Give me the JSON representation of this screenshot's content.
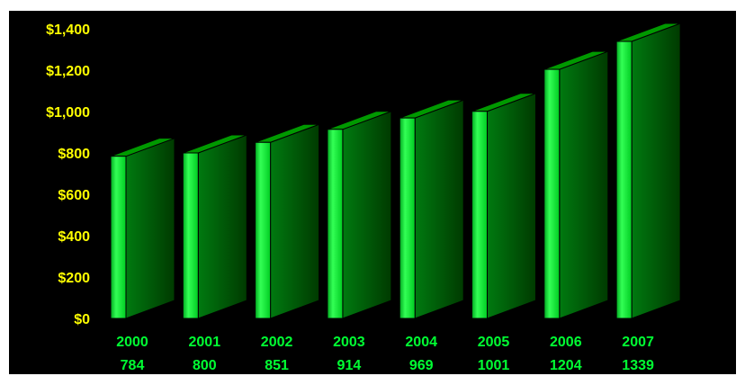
{
  "chart_data": {
    "type": "bar",
    "title": "",
    "xlabel": "",
    "ylabel": "",
    "categories": [
      "2000",
      "2001",
      "2002",
      "2003",
      "2004",
      "2005",
      "2006",
      "2007"
    ],
    "value_labels": [
      "784",
      "800",
      "851",
      "914",
      "969",
      "1001",
      "1204",
      "1339"
    ],
    "values": [
      784,
      800,
      851,
      914,
      969,
      1001,
      1204,
      1339
    ],
    "ylim": [
      0,
      1400
    ],
    "yticks": [
      0,
      200,
      400,
      600,
      800,
      1000,
      1200,
      1400
    ],
    "ytick_labels": [
      "$0",
      "$200",
      "$400",
      "$600",
      "$800",
      "$1,000",
      "$1,200",
      "$1,400"
    ],
    "grid": false,
    "legend": "none",
    "style": "3d-bars",
    "colors": {
      "plot_background": "#000000",
      "page_background": "#ffffff",
      "bar_front": "#00ff33",
      "bar_side": "#006600",
      "bar_top": "#009900",
      "tick_text": "#ffff00",
      "category_text": "#00ff33"
    }
  }
}
